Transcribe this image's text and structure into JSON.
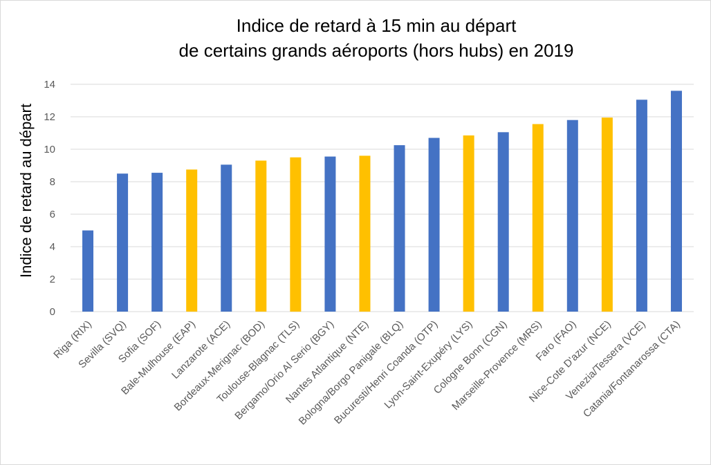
{
  "chart_data": {
    "type": "bar",
    "title_lines": [
      "Indice de retard à 15 min  au départ",
      "de certains grands aéroports (hors hubs) en 2019"
    ],
    "xlabel": "",
    "ylabel": "Indice de retard au départ",
    "ylim": [
      0,
      14
    ],
    "yticks": [
      0,
      2,
      4,
      6,
      8,
      10,
      12,
      14
    ],
    "grid": true,
    "categories": [
      "Riga (RIX)",
      "Sevilla (SVQ)",
      "Sofia (SOF)",
      "Bale-Mulhouse (EAP)",
      "Lanzarote (ACE)",
      "Bordeaux-Merignac (BOD)",
      "Toulouse-Blagnac (TLS)",
      "Bergamo/Orio Al Serio (BGY)",
      "Nantes Atlantique (NTE)",
      "Bologna/Borgo Panigale (BLQ)",
      "Bucuresti/Henri Coanda (OTP)",
      "Lyon-Saint-Exupéry (LYS)",
      "Cologne Bonn (CGN)",
      "Marseille-Provence (MRS)",
      "Faro (FAO)",
      "Nice-Cote D'azur (NCE)",
      "Venezia/Tessera (VCE)",
      "Catania/Fontanarossa (CTA)"
    ],
    "values": [
      5.0,
      8.5,
      8.55,
      8.75,
      9.05,
      9.3,
      9.5,
      9.55,
      9.6,
      10.25,
      10.7,
      10.85,
      11.05,
      11.55,
      11.8,
      11.95,
      13.05,
      13.6
    ],
    "bar_colors": [
      "#4472C4",
      "#4472C4",
      "#4472C4",
      "#FFC000",
      "#4472C4",
      "#FFC000",
      "#FFC000",
      "#4472C4",
      "#FFC000",
      "#4472C4",
      "#4472C4",
      "#FFC000",
      "#4472C4",
      "#FFC000",
      "#4472C4",
      "#FFC000",
      "#4472C4",
      "#4472C4"
    ]
  },
  "colors": {
    "blue": "#4472C4",
    "yellow": "#FFC000",
    "grid": "#d9d9d9",
    "axis_text": "#595959"
  }
}
